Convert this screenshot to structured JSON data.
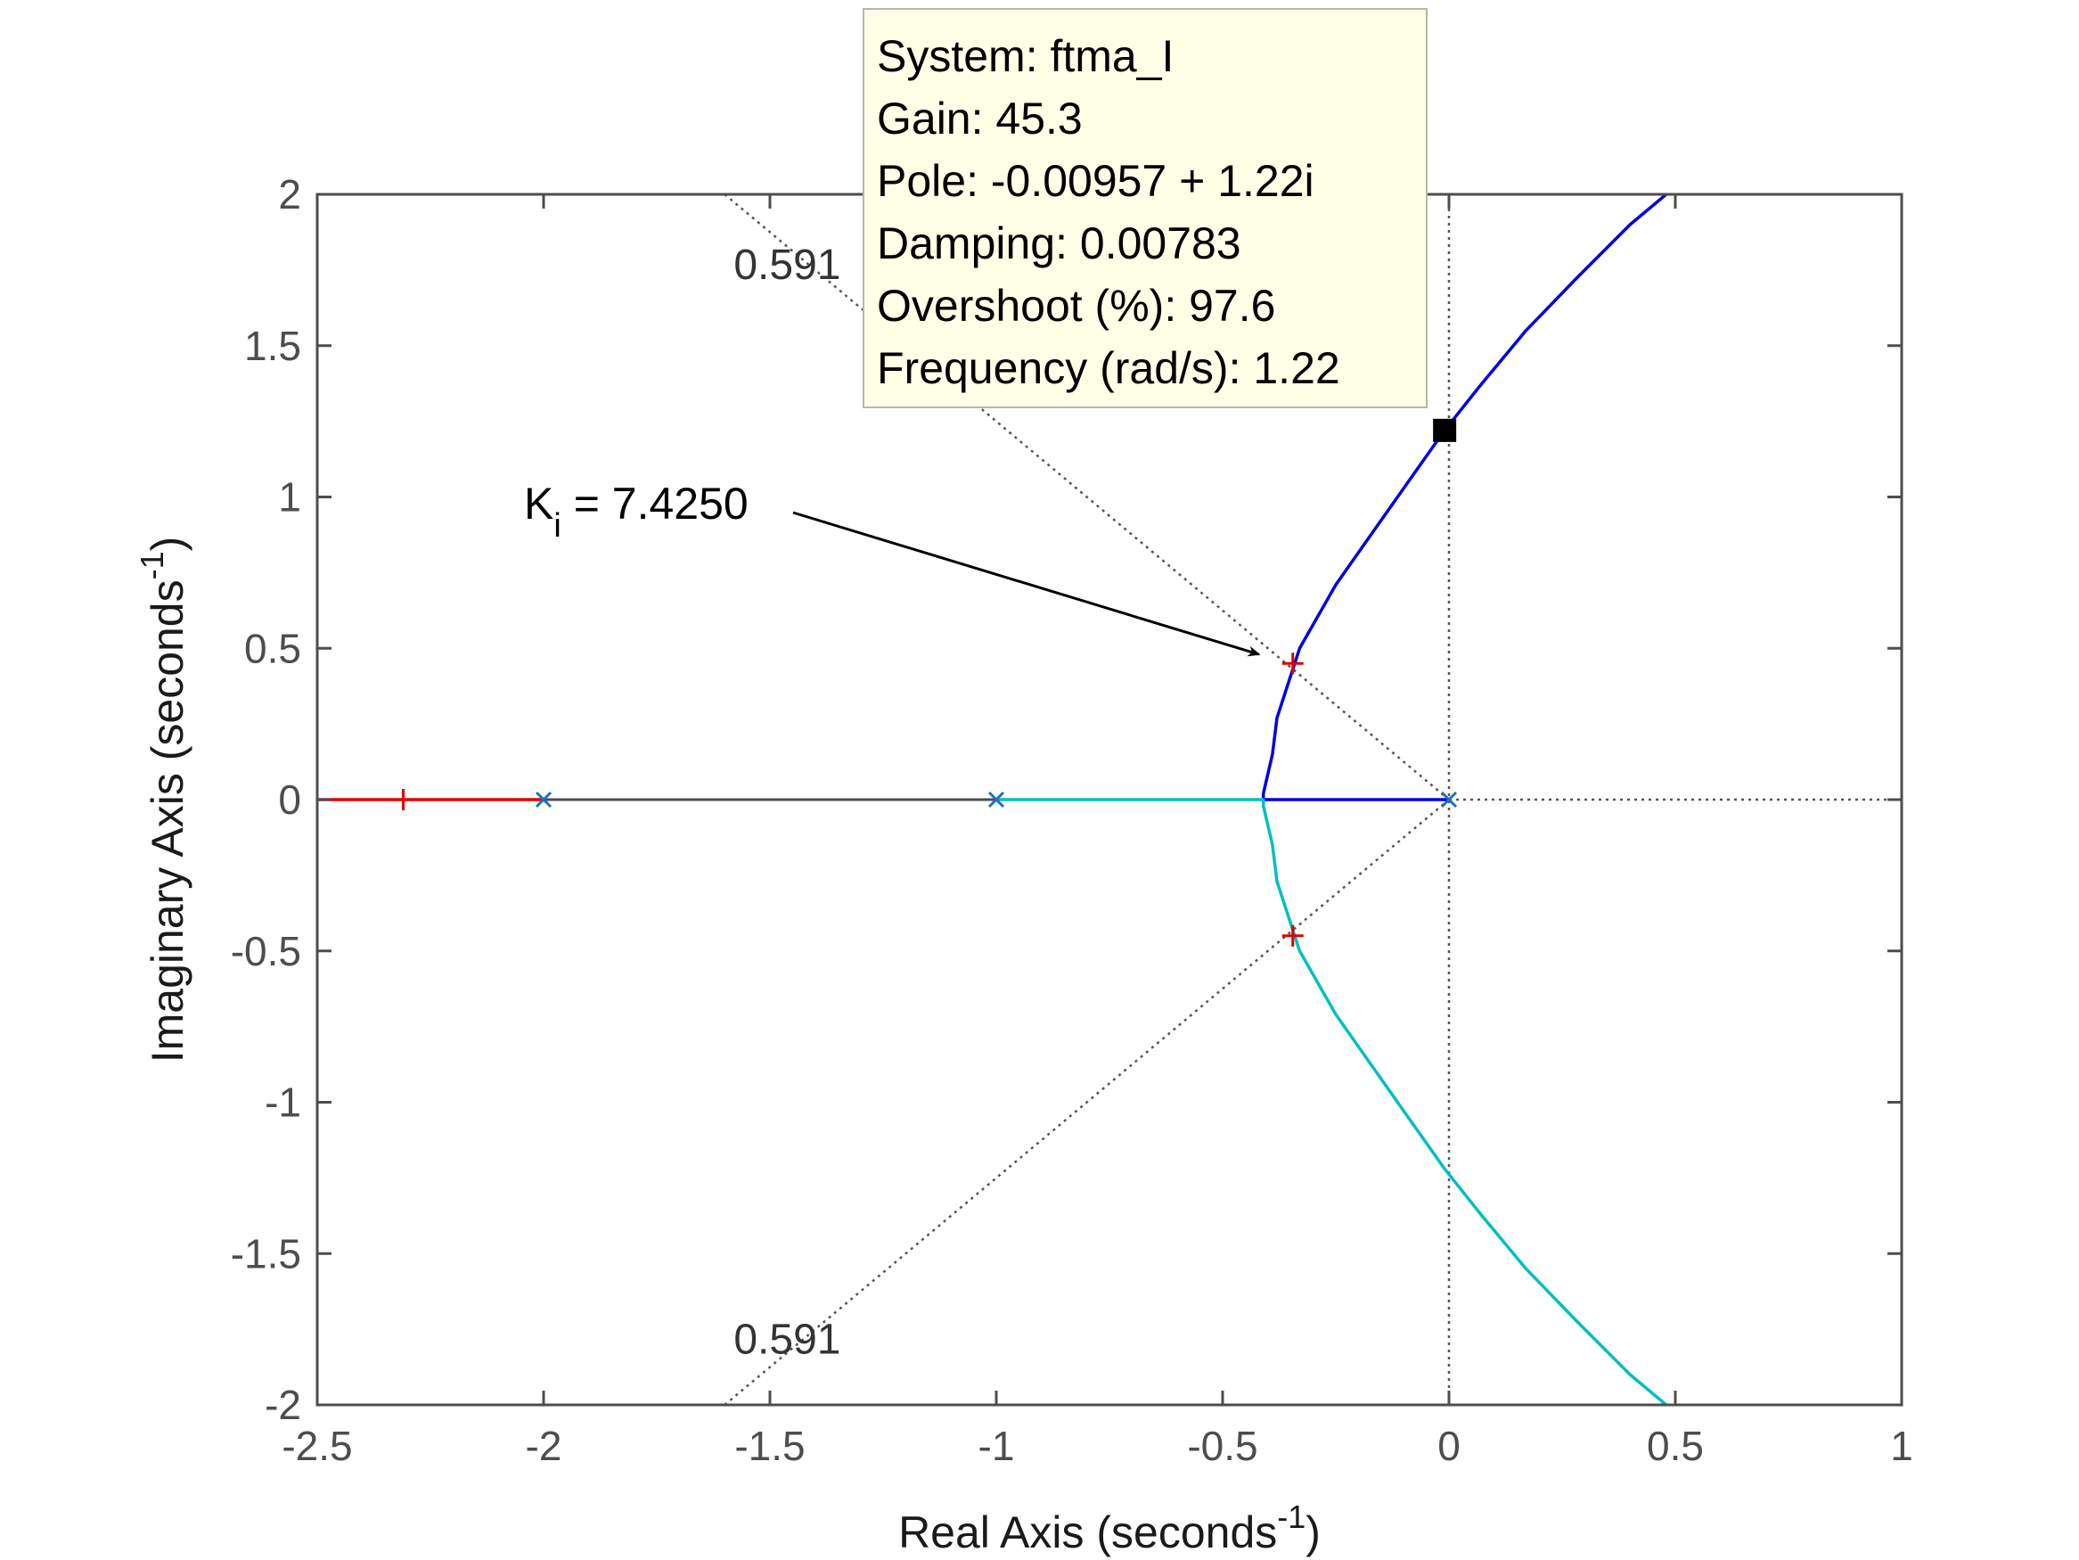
{
  "chart_data": {
    "type": "line",
    "subtype": "root-locus",
    "title": "",
    "xlabel": "Real Axis (seconds",
    "xlabel_sup": "-1",
    "xlabel_end": ")",
    "ylabel": "Imaginary Axis (seconds",
    "ylabel_sup": "-1",
    "ylabel_end": ")",
    "xlim": [
      -2.5,
      1
    ],
    "ylim": [
      -2,
      2
    ],
    "xticks": [
      -2.5,
      -2,
      -1.5,
      -1,
      -0.5,
      0,
      0.5,
      1
    ],
    "xtick_labels": [
      "-2.5",
      "-2",
      "-1.5",
      "-1",
      "-0.5",
      "0",
      "0.5",
      "1"
    ],
    "yticks": [
      -2,
      -1.5,
      -1,
      -0.5,
      0,
      0.5,
      1,
      1.5,
      2
    ],
    "ytick_labels": [
      "-2",
      "-1.5",
      "-1",
      "-0.5",
      "0",
      "0.5",
      "1",
      "1.5",
      "2"
    ],
    "grid": false,
    "colors": {
      "branch_upper": "#0000e0",
      "branch_lower": "#00bfc0",
      "branch_real": "#e00000",
      "open_loop_pole": "#1f6fc0",
      "closed_loop_pole": "#e00000",
      "grid_lines": "#555555",
      "axis": "#4d4d4d",
      "tooltip_bg": "#ffffe8",
      "tooltip_border": "#b8b8a8"
    },
    "series": [
      {
        "color_key": "branch_upper",
        "x": [
          0,
          -0.2,
          -0.41,
          -0.41,
          -0.39,
          -0.38,
          -0.33,
          -0.25,
          -0.17,
          -0.09,
          -0.00957,
          0.07,
          0.17,
          0.28,
          0.4,
          0.48
        ],
        "y": [
          0,
          0,
          0,
          0.02,
          0.15,
          0.27,
          0.5,
          0.71,
          0.88,
          1.05,
          1.22,
          1.37,
          1.55,
          1.72,
          1.9,
          2.0
        ]
      },
      {
        "color_key": "branch_lower",
        "x": [
          -1,
          -0.7,
          -0.41,
          -0.41,
          -0.39,
          -0.38,
          -0.33,
          -0.25,
          -0.17,
          -0.09,
          -0.00957,
          0.07,
          0.17,
          0.28,
          0.4,
          0.48
        ],
        "y": [
          0,
          0,
          0,
          -0.02,
          -0.15,
          -0.27,
          -0.5,
          -0.71,
          -0.88,
          -1.05,
          -1.22,
          -1.37,
          -1.55,
          -1.72,
          -1.9,
          -2.0
        ]
      },
      {
        "color_key": "branch_real",
        "x": [
          -2,
          -2.2,
          -2.32,
          -2.5
        ],
        "y": [
          0,
          0,
          0,
          0
        ]
      }
    ],
    "open_loop_poles": [
      {
        "x": -2,
        "y": 0
      },
      {
        "x": -1,
        "y": 0
      },
      {
        "x": 0,
        "y": 0
      }
    ],
    "closed_loop_poles": [
      {
        "x": -0.345,
        "y": 0.45
      },
      {
        "x": -0.345,
        "y": -0.45
      },
      {
        "x": -2.31,
        "y": 0
      }
    ],
    "damping_lines": [
      {
        "label": "0.591",
        "end_x": -1.6,
        "end_y": 2.0
      },
      {
        "label": "0.591",
        "end_x": -1.6,
        "end_y": -2.0
      }
    ],
    "selected_point": {
      "x": -0.00957,
      "y": 1.22
    },
    "annotation": {
      "text_main": "K",
      "text_sub": "i",
      "text_value": " = 7.4250",
      "arrow_to_x": -0.42,
      "arrow_to_y": 0.48
    },
    "datatip": {
      "lines": [
        "System: ftma_I",
        "Gain: 45.3",
        "Pole: -0.00957 + 1.22i",
        "Damping: 0.00783",
        "Overshoot (%): 97.6",
        "Frequency (rad/s): 1.22"
      ]
    }
  }
}
